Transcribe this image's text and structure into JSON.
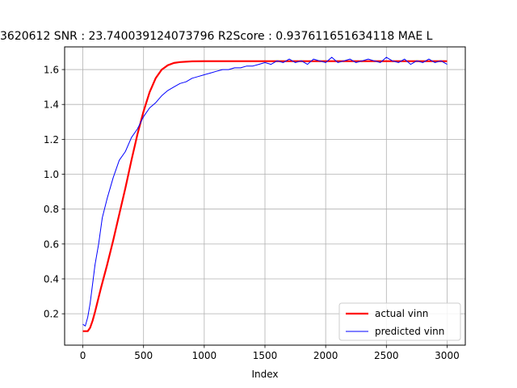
{
  "chart_data": {
    "type": "line",
    "title": "3620612  SNR : 23.740039124073796 R2Score : 0.937611651634118 MAE L",
    "xlabel": "Index",
    "ylabel": "",
    "xlim": [
      -150,
      3150
    ],
    "ylim": [
      0.02,
      1.73
    ],
    "xticks": [
      0,
      500,
      1000,
      1500,
      2000,
      2500,
      3000
    ],
    "yticks": [
      0.2,
      0.4,
      0.6,
      0.8,
      1.0,
      1.2,
      1.4,
      1.6
    ],
    "ytick_labels": [
      "0.2",
      "0.4",
      "0.6",
      "0.8",
      "1.0",
      "1.2",
      "1.4",
      "1.6"
    ],
    "grid": true,
    "legend_position": "lower-right",
    "series": [
      {
        "name": "actual vinn",
        "color": "#ff0000",
        "x": [
          0,
          20,
          40,
          60,
          80,
          100,
          150,
          200,
          250,
          300,
          350,
          400,
          450,
          500,
          550,
          600,
          650,
          700,
          750,
          800,
          900,
          1000,
          1200,
          1500,
          2000,
          2500,
          3000
        ],
        "y": [
          0.1,
          0.1,
          0.1,
          0.12,
          0.16,
          0.21,
          0.35,
          0.48,
          0.62,
          0.77,
          0.92,
          1.08,
          1.23,
          1.36,
          1.47,
          1.55,
          1.6,
          1.625,
          1.638,
          1.643,
          1.647,
          1.648,
          1.648,
          1.648,
          1.648,
          1.648,
          1.648
        ]
      },
      {
        "name": "predicted vinn",
        "color": "#0000ff",
        "x": [
          0,
          20,
          40,
          60,
          80,
          100,
          130,
          160,
          200,
          250,
          300,
          350,
          400,
          450,
          500,
          550,
          600,
          650,
          700,
          750,
          800,
          850,
          900,
          950,
          1000,
          1050,
          1100,
          1150,
          1200,
          1250,
          1300,
          1350,
          1400,
          1450,
          1500,
          1550,
          1600,
          1650,
          1700,
          1750,
          1800,
          1850,
          1900,
          1950,
          2000,
          2050,
          2100,
          2150,
          2200,
          2250,
          2300,
          2350,
          2400,
          2450,
          2500,
          2550,
          2600,
          2650,
          2700,
          2750,
          2800,
          2850,
          2900,
          2950,
          3000
        ],
        "y": [
          0.14,
          0.13,
          0.18,
          0.26,
          0.37,
          0.48,
          0.6,
          0.75,
          0.86,
          0.98,
          1.08,
          1.13,
          1.21,
          1.26,
          1.33,
          1.38,
          1.41,
          1.45,
          1.48,
          1.5,
          1.52,
          1.53,
          1.55,
          1.56,
          1.57,
          1.58,
          1.59,
          1.6,
          1.6,
          1.61,
          1.61,
          1.62,
          1.62,
          1.63,
          1.64,
          1.63,
          1.65,
          1.64,
          1.66,
          1.64,
          1.65,
          1.63,
          1.66,
          1.65,
          1.64,
          1.67,
          1.64,
          1.65,
          1.66,
          1.64,
          1.65,
          1.66,
          1.65,
          1.64,
          1.67,
          1.65,
          1.64,
          1.66,
          1.63,
          1.65,
          1.64,
          1.66,
          1.64,
          1.65,
          1.63
        ]
      }
    ]
  }
}
